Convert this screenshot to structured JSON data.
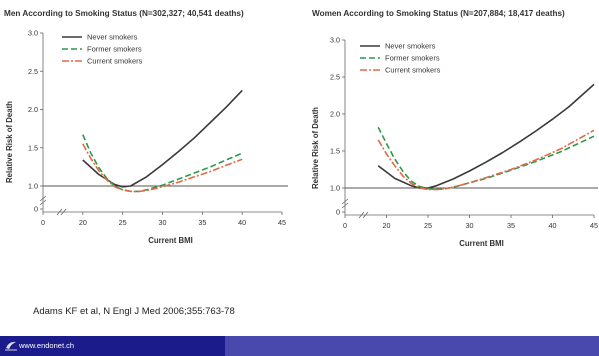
{
  "chart_data": [
    {
      "type": "line",
      "title": "Men According to Smoking Status (N=302,327; 40,541 deaths)",
      "xlabel": "Current BMI",
      "ylabel": "Relative Risk of Death",
      "xlim": [
        15,
        45
      ],
      "ylim": [
        0,
        3.0
      ],
      "xticks": [
        "0",
        "20",
        "25",
        "30",
        "35",
        "40",
        "45"
      ],
      "yticks": [
        "0",
        "1.0",
        "1.5",
        "2.0",
        "2.5",
        "3.0"
      ],
      "reference_line": 1.0,
      "legend_position": "top-left",
      "series": [
        {
          "name": "Never smokers",
          "color": "#3a3a3a",
          "dash": "",
          "x": [
            20,
            22,
            24,
            25,
            26,
            28,
            30,
            32,
            34,
            36,
            38,
            40
          ],
          "y": [
            1.34,
            1.15,
            1.02,
            0.99,
            1.0,
            1.12,
            1.28,
            1.45,
            1.63,
            1.83,
            2.03,
            2.25
          ]
        },
        {
          "name": "Former smokers",
          "color": "#2a9a4a",
          "dash": "6,3",
          "x": [
            20,
            21,
            22,
            23,
            24,
            25,
            26,
            27,
            28,
            30,
            32,
            34,
            36,
            38,
            40
          ],
          "y": [
            1.67,
            1.43,
            1.24,
            1.1,
            1.0,
            0.95,
            0.93,
            0.93,
            0.95,
            1.01,
            1.09,
            1.17,
            1.25,
            1.34,
            1.43
          ]
        },
        {
          "name": "Current smokers",
          "color": "#e06a48",
          "dash": "7,2,2,2",
          "x": [
            20,
            21,
            22,
            23,
            24,
            25,
            26,
            27,
            28,
            30,
            32,
            34,
            36,
            38,
            40
          ],
          "y": [
            1.55,
            1.36,
            1.2,
            1.08,
            0.99,
            0.95,
            0.93,
            0.93,
            0.94,
            0.99,
            1.05,
            1.12,
            1.19,
            1.27,
            1.35
          ]
        }
      ]
    },
    {
      "type": "line",
      "title": "Women According to Smoking Status (N=207,884; 18,417 deaths)",
      "xlabel": "Current BMI",
      "ylabel": "Relative Risk of Death",
      "xlim": [
        15,
        45
      ],
      "ylim": [
        0,
        3.0
      ],
      "xticks": [
        "0",
        "20",
        "25",
        "30",
        "35",
        "40",
        "45"
      ],
      "yticks": [
        "0",
        "1.0",
        "1.5",
        "2.0",
        "2.5",
        "3.0"
      ],
      "reference_line": 1.0,
      "legend_position": "top-left",
      "series": [
        {
          "name": "Never smokers",
          "color": "#3a3a3a",
          "dash": "",
          "x": [
            19,
            21,
            23,
            24,
            25,
            26,
            28,
            30,
            32,
            34,
            36,
            38,
            40,
            42,
            45
          ],
          "y": [
            1.3,
            1.13,
            1.03,
            1.0,
            1.0,
            1.03,
            1.12,
            1.23,
            1.35,
            1.48,
            1.62,
            1.77,
            1.93,
            2.1,
            2.4
          ]
        },
        {
          "name": "Former smokers",
          "color": "#2a9a4a",
          "dash": "6,3",
          "x": [
            19,
            20,
            21,
            22,
            23,
            24,
            25,
            26,
            27,
            28,
            30,
            32,
            35,
            38,
            41,
            45
          ],
          "y": [
            1.82,
            1.6,
            1.39,
            1.22,
            1.09,
            1.02,
            0.99,
            0.98,
            0.99,
            1.01,
            1.07,
            1.13,
            1.24,
            1.36,
            1.49,
            1.7
          ]
        },
        {
          "name": "Current smokers",
          "color": "#e06a48",
          "dash": "7,2,2,2",
          "x": [
            19,
            20,
            21,
            22,
            23,
            24,
            25,
            26,
            27,
            28,
            30,
            32,
            35,
            38,
            41,
            45
          ],
          "y": [
            1.65,
            1.46,
            1.3,
            1.16,
            1.06,
            1.0,
            0.98,
            0.98,
            0.99,
            1.01,
            1.07,
            1.14,
            1.25,
            1.38,
            1.53,
            1.78
          ]
        }
      ]
    }
  ],
  "citation": "Adams KF et al, N Engl J Med 2006;355:763-78",
  "footer": {
    "url": "www.endonet.ch",
    "dark_color": "#1b1b8c",
    "light_color": "#4848ad"
  }
}
